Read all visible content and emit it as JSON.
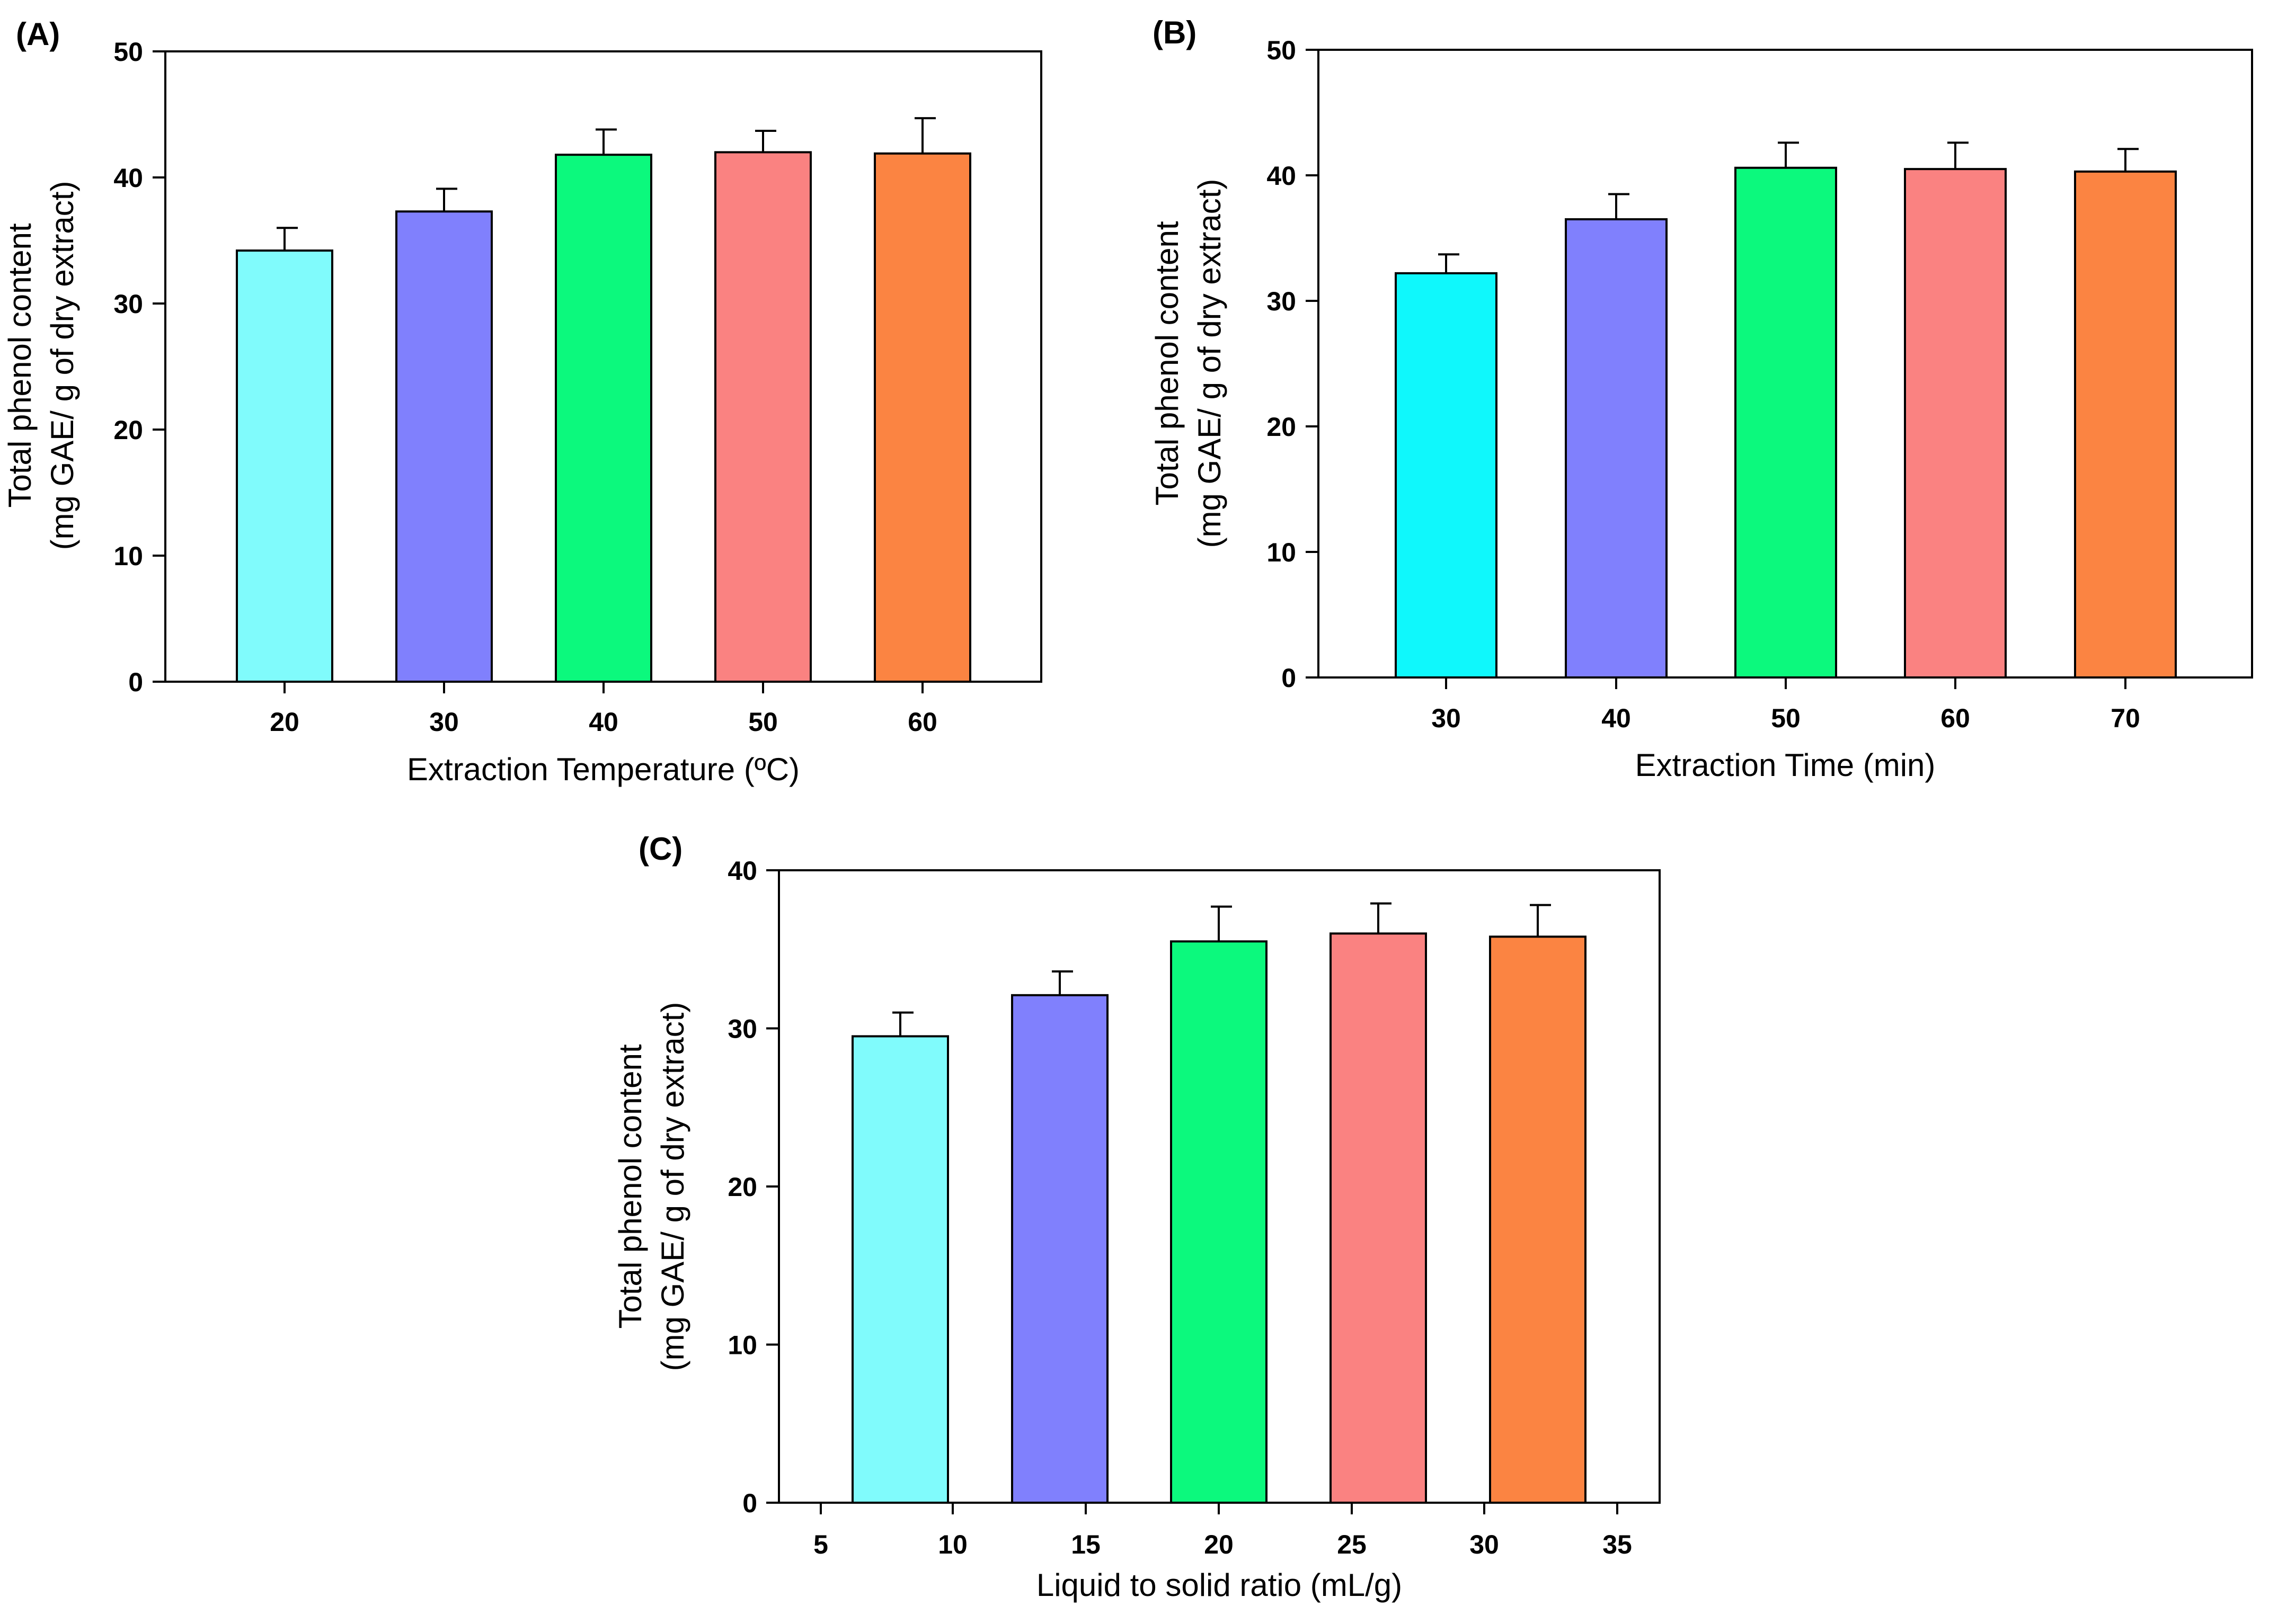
{
  "figure": {
    "colors": [
      "#80fbfc",
      "#8080fd",
      "#0cf97d",
      "#fa8281",
      "#fb8442"
    ],
    "colors_b": [
      "#0ff8fc",
      "#8080fd",
      "#0cf97d",
      "#fa8281",
      "#fb8442"
    ]
  },
  "chart_data": [
    {
      "panel": "(A)",
      "type": "bar",
      "xlabel": "Extraction Temperature (ºC)",
      "ylabel": [
        "Total phenol content",
        "(mg GAE/ g of dry extract)"
      ],
      "categories": [
        "20",
        "30",
        "40",
        "50",
        "60"
      ],
      "values": [
        34.2,
        37.3,
        41.8,
        42.0,
        41.9
      ],
      "errors": [
        1.8,
        1.8,
        2.0,
        1.7,
        2.8
      ],
      "ylim": [
        0,
        50
      ],
      "yticks": [
        "0",
        "10",
        "20",
        "30",
        "40",
        "50"
      ],
      "grid": false
    },
    {
      "panel": "(B)",
      "type": "bar",
      "xlabel": "Extraction Time (min)",
      "ylabel": [
        "Total phenol content",
        "(mg GAE/ g of dry extract)"
      ],
      "categories": [
        "30",
        "40",
        "50",
        "60",
        "70"
      ],
      "values": [
        32.2,
        36.5,
        40.6,
        40.5,
        40.3
      ],
      "errors": [
        1.5,
        2.0,
        2.0,
        2.1,
        1.8
      ],
      "ylim": [
        0,
        50
      ],
      "yticks": [
        "0",
        "10",
        "20",
        "30",
        "40",
        "50"
      ],
      "grid": false
    },
    {
      "panel": "(C)",
      "type": "bar",
      "xlabel": "Liquid to solid ratio (mL/g)",
      "ylabel": [
        "Total phenol content",
        "(mg GAE/ g of dry extract)"
      ],
      "categories": [
        "10",
        "15",
        "20",
        "25",
        "30"
      ],
      "values": [
        29.5,
        32.1,
        35.5,
        36.0,
        35.8
      ],
      "errors": [
        1.5,
        1.5,
        2.2,
        1.9,
        2.0
      ],
      "xticks": [
        "5",
        "10",
        "15",
        "20",
        "25",
        "30",
        "35"
      ],
      "ylim": [
        0,
        40
      ],
      "yticks": [
        "0",
        "10",
        "20",
        "30",
        "40"
      ],
      "grid": false
    }
  ]
}
